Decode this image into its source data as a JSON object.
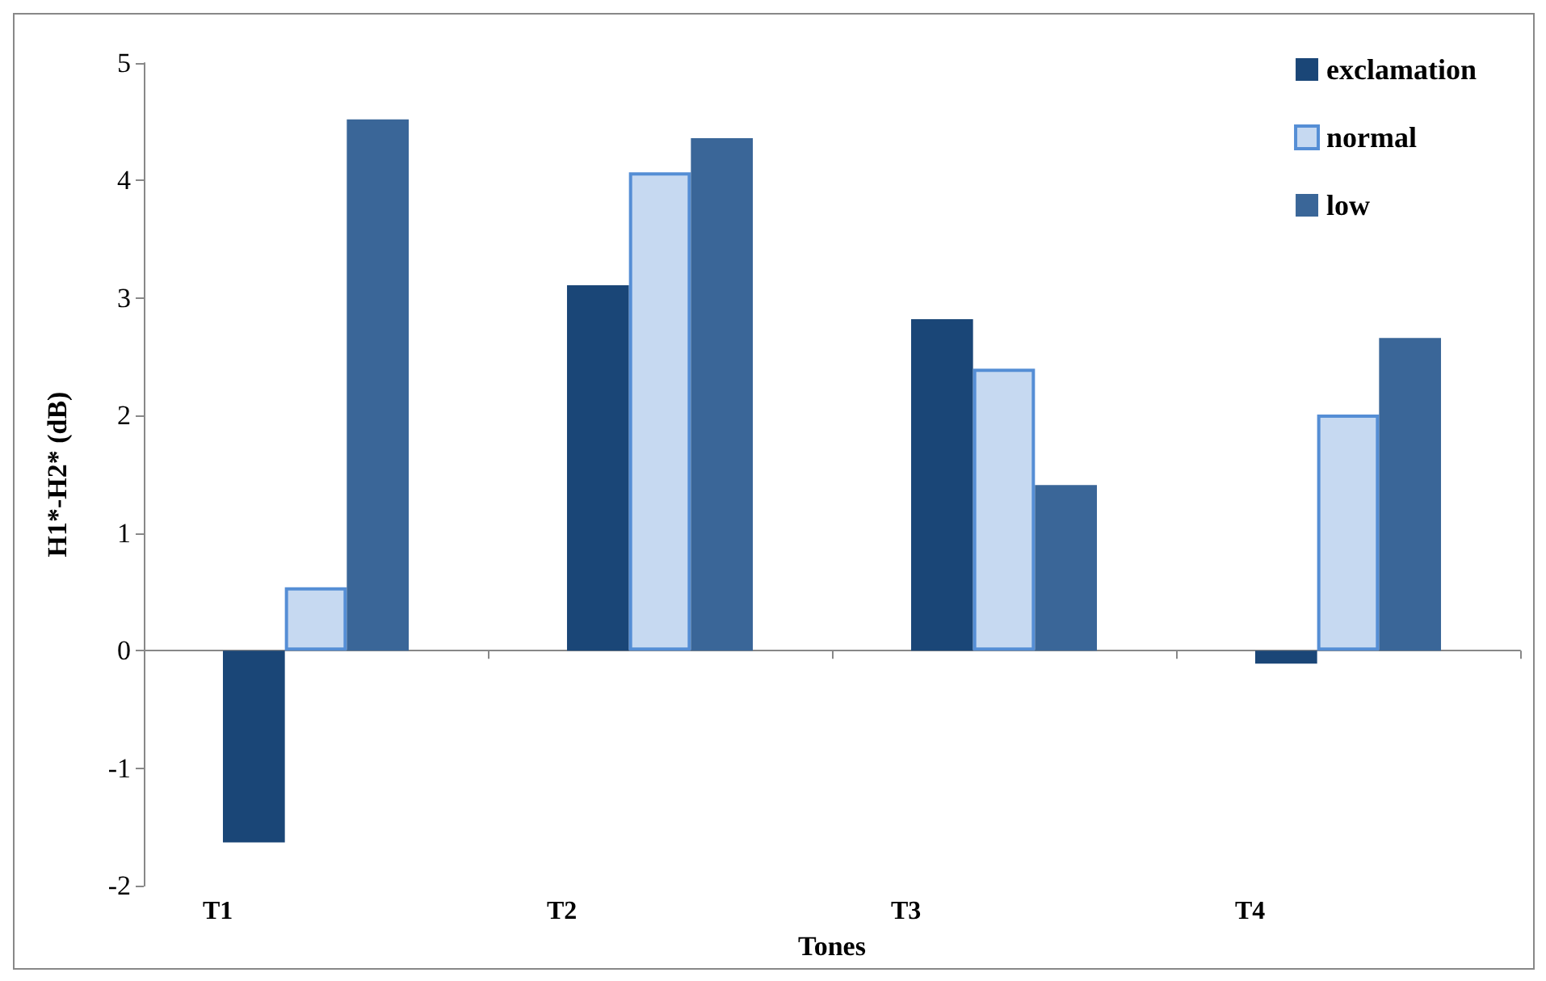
{
  "chart_data": {
    "type": "bar",
    "xlabel": "Tones",
    "ylabel": "H1*-H2* (dB)",
    "categories": [
      "T1",
      "T2",
      "T3",
      "T4"
    ],
    "series": [
      {
        "name": "exclamation",
        "color": "#1a4677",
        "values": [
          -1.63,
          3.11,
          2.82,
          -0.11
        ]
      },
      {
        "name": "normal",
        "color": "#c6d9f1",
        "values": [
          0.54,
          4.07,
          2.4,
          2.01
        ]
      },
      {
        "name": "low",
        "color": "#3a6698",
        "values": [
          4.52,
          4.36,
          1.41,
          2.66
        ]
      }
    ],
    "ylim": [
      -2,
      5
    ],
    "yticks": [
      -2,
      -1,
      0,
      1,
      2,
      3,
      4,
      5
    ],
    "legend": "top right"
  }
}
